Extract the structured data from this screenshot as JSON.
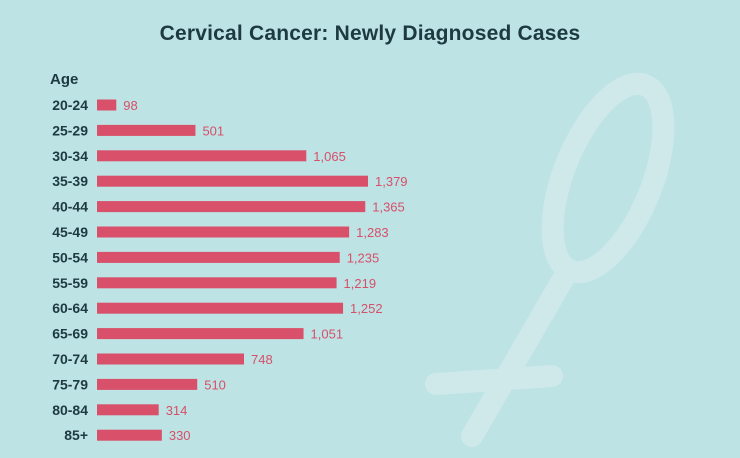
{
  "colors": {
    "background": "#bde3e4",
    "bar": "#d8506a",
    "value_text": "#d6506a",
    "label_text": "#1d3a40",
    "symbol": "#cfe9ea"
  },
  "decorative_icon": "female-symbol-icon",
  "chart_data": {
    "type": "bar",
    "orientation": "horizontal",
    "title": "Cervical Cancer: Newly Diagnosed Cases",
    "ylabel": "Age",
    "xlabel": "",
    "xlim": [
      0,
      1379
    ],
    "grid": false,
    "legend": "none",
    "categories": [
      "20-24",
      "25-29",
      "30-34",
      "35-39",
      "40-44",
      "45-49",
      "50-54",
      "55-59",
      "60-64",
      "65-69",
      "70-74",
      "75-79",
      "80-84",
      "85+"
    ],
    "values": [
      98,
      501,
      1065,
      1379,
      1365,
      1283,
      1235,
      1219,
      1252,
      1051,
      748,
      510,
      314,
      330
    ],
    "value_labels": [
      "98",
      "501",
      "1,065",
      "1,379",
      "1,365",
      "1,283",
      "1,235",
      "1,219",
      "1,252",
      "1,051",
      "748",
      "510",
      "314",
      "330"
    ]
  }
}
